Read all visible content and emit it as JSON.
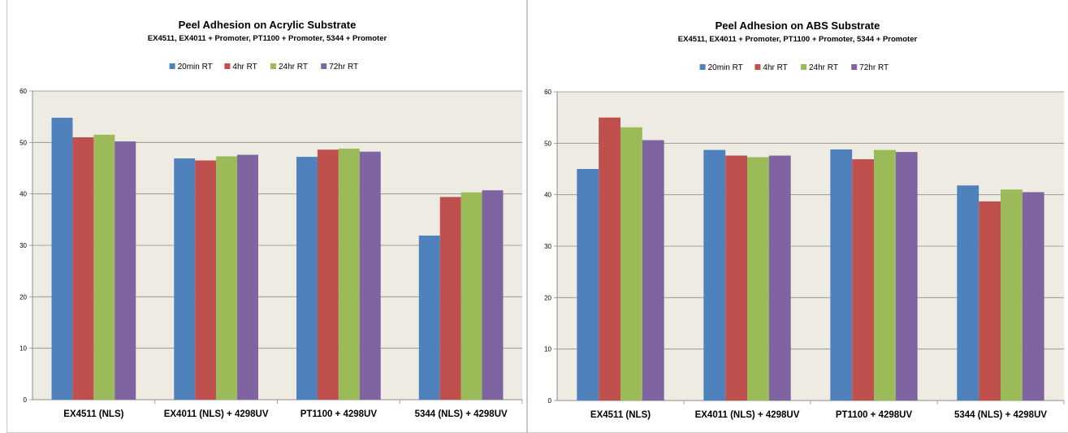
{
  "chart_data": [
    {
      "type": "bar",
      "title": "Peel Adhesion on Acrylic Substrate",
      "subtitle": "EX4511, EX4011 + Promoter, PT1100 + Promoter, 5344 + Promoter",
      "categories": [
        "EX4511 (NLS)",
        "EX4011 (NLS) + 4298UV",
        "PT1100 + 4298UV",
        "5344 (NLS) + 4298UV"
      ],
      "series": [
        {
          "name": "20min RT",
          "color": "#4f81bd",
          "values": [
            54.8,
            46.9,
            47.2,
            31.9
          ]
        },
        {
          "name": "4hr RT",
          "color": "#c0504d",
          "values": [
            51.0,
            46.5,
            48.6,
            39.4
          ]
        },
        {
          "name": "24hr RT",
          "color": "#9bbb59",
          "values": [
            51.5,
            47.3,
            48.8,
            40.3
          ]
        },
        {
          "name": "72hr RT",
          "color": "#8064a2",
          "values": [
            50.2,
            47.6,
            48.2,
            40.7
          ]
        }
      ],
      "ylim": [
        0,
        60
      ],
      "yticks": [
        0,
        10,
        20,
        30,
        40,
        50,
        60
      ],
      "grid": true,
      "legend": "top",
      "plot_bg": "#eeebe2"
    },
    {
      "type": "bar",
      "title": "Peel Adhesion on ABS Substrate",
      "subtitle": "EX4511, EX4011 + Promoter, PT1100 + Promoter, 5344 + Promoter",
      "categories": [
        "EX4511 (NLS)",
        "EX4011 (NLS) + 4298UV",
        "PT1100 + 4298UV",
        "5344 (NLS) + 4298UV"
      ],
      "series": [
        {
          "name": "20min RT",
          "color": "#4f81bd",
          "values": [
            45.0,
            48.7,
            48.8,
            41.8
          ]
        },
        {
          "name": "4hr RT",
          "color": "#c0504d",
          "values": [
            55.0,
            47.6,
            46.9,
            38.7
          ]
        },
        {
          "name": "24hr RT",
          "color": "#9bbb59",
          "values": [
            53.1,
            47.3,
            48.7,
            41.0
          ]
        },
        {
          "name": "72hr RT",
          "color": "#8064a2",
          "values": [
            50.6,
            47.6,
            48.3,
            40.5
          ]
        }
      ],
      "ylim": [
        0,
        60
      ],
      "yticks": [
        0,
        10,
        20,
        30,
        40,
        50,
        60
      ],
      "grid": true,
      "legend": "top",
      "plot_bg": "#eeebe2"
    }
  ]
}
